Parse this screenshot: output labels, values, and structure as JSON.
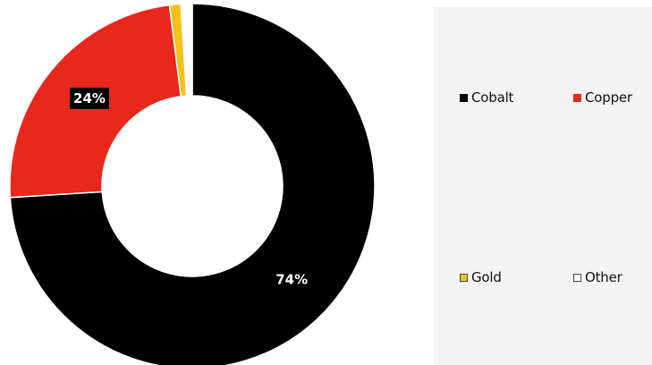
{
  "chart_data": {
    "type": "pie",
    "donut": true,
    "categories": [
      "Cobalt",
      "Copper",
      "Gold",
      "Other"
    ],
    "values": [
      74,
      24,
      1,
      1
    ],
    "colors": [
      "#000000",
      "#e8281c",
      "#f3c31a",
      "#ffffff"
    ],
    "data_labels": [
      "74%",
      "24%",
      "",
      ""
    ],
    "legend_position": "right",
    "title": ""
  },
  "legend": {
    "items": [
      {
        "label": "Cobalt",
        "color": "#000000"
      },
      {
        "label": "Copper",
        "color": "#e8281c"
      },
      {
        "label": "Gold",
        "color": "#f3c31a"
      },
      {
        "label": "Other",
        "color": "#ffffff"
      }
    ]
  }
}
